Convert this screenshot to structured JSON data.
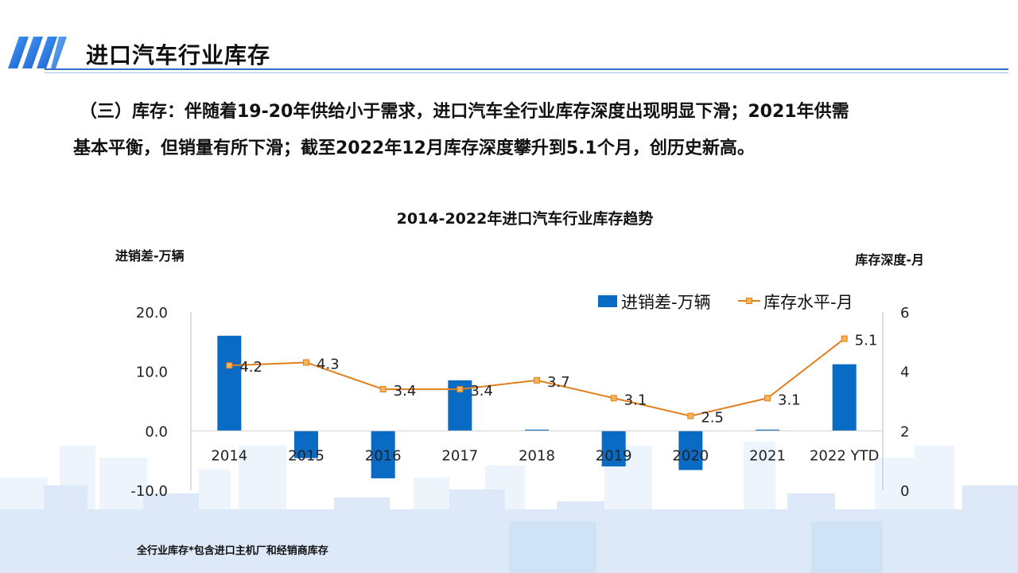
{
  "header": {
    "title": "进口汽车行业库存"
  },
  "body": {
    "line1": "（三）库存：伴随着19-20年供给小于需求，进口汽车全行业库存深度出现明显下滑；2021年供需",
    "line2": "基本平衡，但销量有所下滑；截至2022年12月库存深度攀升到5.1个月，创历史新高。"
  },
  "footnote": "全行业库存*包含进口主机厂和经销商库存",
  "colors": {
    "bar": "#0a6bc4",
    "line": "#e07f1c",
    "title_rule": "#2f6fc7",
    "skyline": "#e3eefb"
  },
  "chart_data": {
    "type": "bar",
    "title": "2014-2022年进口汽车行业库存趋势",
    "ylabel": "进销差-万辆",
    "y2label": "库存深度-月",
    "categories": [
      "2014",
      "2015",
      "2016",
      "2017",
      "2018",
      "2019",
      "2020",
      "2021",
      "2022 YTD"
    ],
    "ylim": [
      -10,
      20
    ],
    "yticks": [
      "20.0",
      "10.0",
      "0.0",
      "-10.0"
    ],
    "y2lim": [
      0,
      6
    ],
    "y2ticks": [
      "6",
      "4",
      "2",
      "0"
    ],
    "legend_position": "top-right",
    "series": [
      {
        "name": "进销差-万辆",
        "type": "bar",
        "axis": "left",
        "values": [
          16.0,
          -4.6,
          -8.0,
          8.5,
          0.2,
          -6.0,
          -6.6,
          0.2,
          11.2
        ]
      },
      {
        "name": "库存水平-月",
        "type": "line",
        "axis": "right",
        "values": [
          4.2,
          4.3,
          3.4,
          3.4,
          3.7,
          3.1,
          2.5,
          3.1,
          5.1
        ],
        "labels": [
          "4.2",
          "4.3",
          "3.4",
          "3.4",
          "3.7",
          "3.1",
          "2.5",
          "3.1",
          "5.1"
        ]
      }
    ]
  }
}
